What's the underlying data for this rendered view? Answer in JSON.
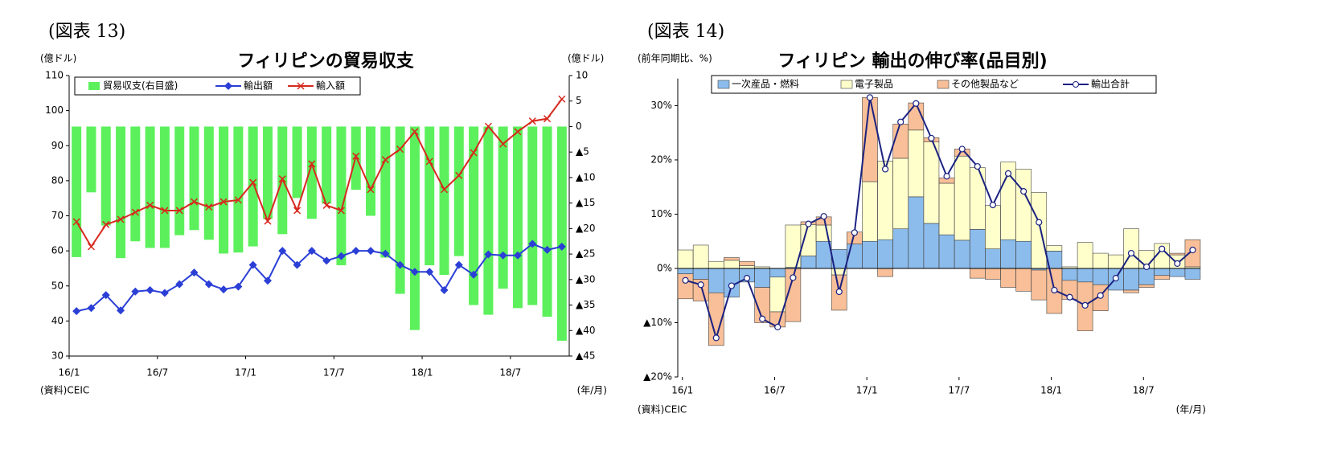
{
  "chart_data": [
    {
      "type": "bar_line",
      "figure_label": "(図表 13)",
      "title": "フィリピンの貿易収支",
      "y_label": "(億ドル)",
      "y2_label": "(億ドル)",
      "source": "(資料)CEIC",
      "x_unit": "(年/月)",
      "categories": [
        "16/1",
        null,
        null,
        null,
        null,
        null,
        "16/7",
        null,
        null,
        null,
        null,
        null,
        "17/1",
        null,
        null,
        null,
        null,
        null,
        "17/7",
        null,
        null,
        null,
        null,
        null,
        "18/1",
        null,
        null,
        null,
        null,
        null,
        "18/7",
        null,
        null,
        null
      ],
      "ylim": [
        30,
        110
      ],
      "yticks": [
        30,
        40,
        50,
        60,
        70,
        80,
        90,
        100,
        110
      ],
      "y2lim": [
        -45,
        10
      ],
      "y2ticks": [
        {
          "value": -45,
          "label": "▲45"
        },
        {
          "value": -40,
          "label": "▲40"
        },
        {
          "value": -35,
          "label": "▲35"
        },
        {
          "value": -30,
          "label": "▲30"
        },
        {
          "value": -25,
          "label": "▲25"
        },
        {
          "value": -20,
          "label": "▲20"
        },
        {
          "value": -15,
          "label": "▲15"
        },
        {
          "value": -10,
          "label": "▲10"
        },
        {
          "value": -5,
          "label": "▲5"
        },
        0,
        5,
        10
      ],
      "series": [
        {
          "name": "貿易収支(右目盛)",
          "type": "bar",
          "axis": "y2",
          "color": "#5cf05c",
          "values": [
            -25.6,
            -12.9,
            -19.4,
            -25.8,
            -22.5,
            -23.8,
            -23.8,
            -21.3,
            -20.3,
            -22.2,
            -24.9,
            -24.7,
            -23.5,
            -18.1,
            -21.1,
            -14,
            -18.1,
            -15.1,
            -27.2,
            -12.4,
            -17.5,
            -25.7,
            -32.8,
            -39.9,
            -27.2,
            -29.1,
            -25.4,
            -35,
            -36.9,
            -31.8,
            -35.6,
            -35,
            -37.3,
            -42
          ]
        },
        {
          "name": "輸出額",
          "type": "line",
          "marker": "diamond",
          "color": "#2b3fd6",
          "values": [
            42.8,
            43.7,
            47.4,
            43,
            48.4,
            48.8,
            48,
            50.5,
            53.8,
            50.5,
            49,
            49.8,
            56,
            51.5,
            60,
            56,
            60,
            57.2,
            58.5,
            60,
            60,
            59.2,
            56,
            54,
            54,
            48.8,
            56,
            53.2,
            59,
            58.7,
            58.7,
            62,
            60.3,
            61.2
          ]
        },
        {
          "name": "輸入額",
          "type": "line",
          "marker": "x",
          "color": "#d62a1e",
          "values": [
            68.3,
            61.2,
            67.5,
            69,
            71,
            73,
            71.5,
            71.5,
            74,
            72.5,
            74,
            74.5,
            79.5,
            68.5,
            80.5,
            71.5,
            84.8,
            73,
            71.5,
            87,
            77.5,
            86,
            89,
            94,
            85.5,
            77.5,
            81.5,
            88,
            95.5,
            90.5,
            94,
            97,
            97.7,
            103.3
          ]
        }
      ]
    },
    {
      "type": "stacked_bar_line",
      "figure_label": "(図表 14)",
      "title": "フィリピン 輸出の伸び率(品目別)",
      "y_label": "(前年同期比、%)",
      "source": "(資料)CEIC",
      "x_unit": "(年/月)",
      "categories": [
        "16/1",
        null,
        null,
        null,
        null,
        null,
        "16/7",
        null,
        null,
        null,
        null,
        null,
        "17/1",
        null,
        null,
        null,
        null,
        null,
        "17/7",
        null,
        null,
        null,
        null,
        null,
        "18/1",
        null,
        null,
        null,
        null,
        null,
        "18/7",
        null,
        null,
        null
      ],
      "ylim": [
        -20,
        35
      ],
      "yticks": [
        {
          "value": -20,
          "label": "▲20%"
        },
        {
          "value": -10,
          "label": "▲10%"
        },
        {
          "value": 0,
          "label": "0%"
        },
        {
          "value": 10,
          "label": "10%"
        },
        {
          "value": 20,
          "label": "20%"
        },
        {
          "value": 30,
          "label": "30%"
        }
      ],
      "series": [
        {
          "name": "一次産品・燃料",
          "type": "bar",
          "color": "#8cbcec",
          "values": [
            -1,
            -2,
            -4.5,
            -5.3,
            -2.5,
            -3.5,
            -1.6,
            0.2,
            2.3,
            5,
            3.5,
            4.5,
            5,
            5.3,
            7.3,
            13.2,
            8.3,
            6.2,
            5.2,
            7.2,
            3.6,
            5.3,
            5,
            -0.3,
            3.2,
            -2.2,
            -2.5,
            -3,
            -4,
            -4,
            -3,
            -1.3,
            -1.5,
            -2
          ]
        },
        {
          "name": "電子製品",
          "type": "bar",
          "color": "#ffffcc",
          "values": [
            3.4,
            4.3,
            1.3,
            1.5,
            0.5,
            0.3,
            -6.4,
            7.8,
            5.8,
            3,
            -1.2,
            0,
            11,
            14.5,
            13,
            12.3,
            15,
            9.5,
            15.5,
            11.4,
            8,
            14.3,
            13.3,
            14,
            1,
            0.3,
            4.8,
            2.8,
            2.5,
            7.3,
            3.3,
            4.6,
            2.5,
            0.3
          ]
        },
        {
          "name": "その他製品など",
          "type": "bar",
          "color": "#f8bf98",
          "values": [
            -4.6,
            -4,
            -9.7,
            0.5,
            0.8,
            -6.5,
            -2.8,
            -9.8,
            0.5,
            1.5,
            -6.5,
            2.2,
            15.5,
            -1.5,
            6.3,
            5,
            0.8,
            1,
            1.3,
            -1.8,
            -2,
            -3.5,
            -4.2,
            -5.5,
            -8.3,
            -3.5,
            -9,
            -4.8,
            0,
            -0.5,
            -0.5,
            -0.7,
            0.3,
            5
          ]
        },
        {
          "name": "輸出合計",
          "type": "line",
          "marker": "circle",
          "color": "#1b2280",
          "values": [
            -2.2,
            -3,
            -12.8,
            -3.2,
            -1.8,
            -9.3,
            -10.8,
            -1.7,
            8.2,
            9.6,
            -4.3,
            6.6,
            31.5,
            18.3,
            27,
            30.4,
            24,
            17,
            22,
            18.8,
            11.7,
            17.5,
            14.2,
            8.5,
            -4,
            -5.3,
            -6.8,
            -5,
            -1.8,
            2.8,
            0.3,
            3.6,
            0.9,
            3.4
          ]
        }
      ]
    }
  ]
}
